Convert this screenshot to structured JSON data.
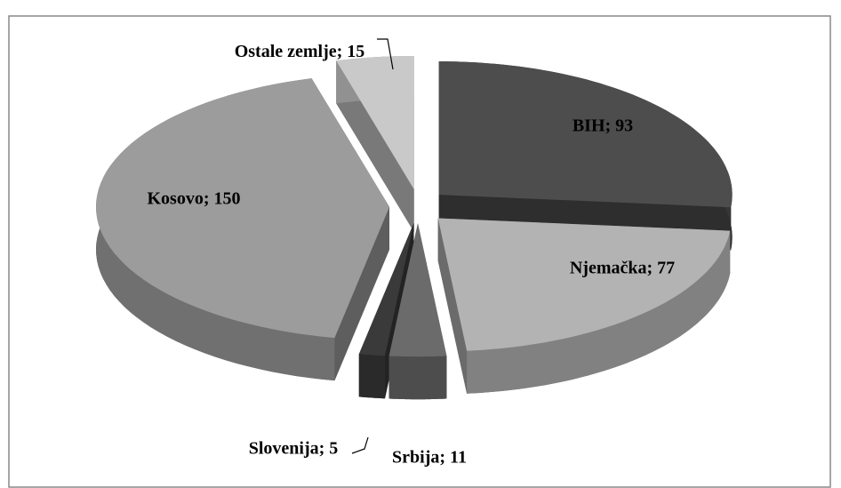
{
  "chart_data": {
    "type": "pie3d",
    "categories": [
      "BIH",
      "Njemačka",
      "Srbija",
      "Slovenija",
      "Kosovo",
      "Ostale zemlje"
    ],
    "values": [
      93,
      77,
      11,
      5,
      150,
      15
    ],
    "value_labels": [
      "BIH; 93",
      "Njemačka; 77",
      "Srbija; 11",
      "Slovenija; 5",
      "Kosovo; 150",
      "Ostale zemlje; 15"
    ],
    "colors": [
      "#4d4d4d",
      "#b3b3b3",
      "#6b6b6b",
      "#3a3a3a",
      "#9c9c9c",
      "#c9c9c9"
    ]
  }
}
